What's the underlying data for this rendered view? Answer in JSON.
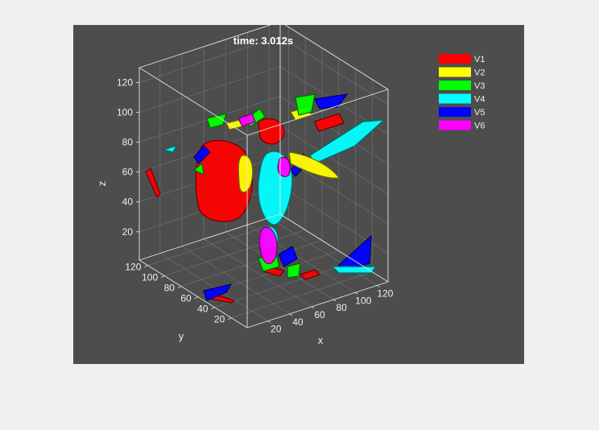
{
  "chart_data": {
    "type": "3d-isosurface",
    "title": "time: 3.012s",
    "xlabel": "x",
    "ylabel": "y",
    "zlabel": "z",
    "x_ticks": [
      "20",
      "40",
      "60",
      "80",
      "100",
      "120"
    ],
    "y_ticks": [
      "20",
      "40",
      "60",
      "80",
      "100",
      "120"
    ],
    "z_ticks": [
      "20",
      "40",
      "60",
      "80",
      "100",
      "120"
    ],
    "xlim": [
      1,
      130
    ],
    "ylim": [
      1,
      130
    ],
    "zlim": [
      1,
      130
    ],
    "grid": true,
    "legend_position": "top-right",
    "series": [
      {
        "name": "V1",
        "color": "#ff0000"
      },
      {
        "name": "V2",
        "color": "#ffff00"
      },
      {
        "name": "V3",
        "color": "#00ff00"
      },
      {
        "name": "V4",
        "color": "#00ffff"
      },
      {
        "name": "V5",
        "color": "#0000ff"
      },
      {
        "name": "V6",
        "color": "#ff00ff"
      }
    ]
  }
}
